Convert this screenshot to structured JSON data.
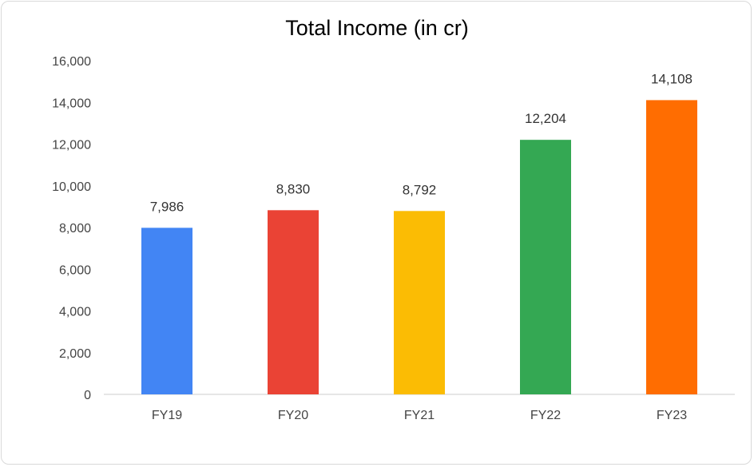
{
  "chart_data": {
    "type": "bar",
    "title": "Total Income (in cr)",
    "xlabel": "",
    "ylabel": "",
    "categories": [
      "FY19",
      "FY20",
      "FY21",
      "FY22",
      "FY23"
    ],
    "values": [
      7986,
      8830,
      8792,
      12204,
      14108
    ],
    "data_labels": [
      "7,986",
      "8,830",
      "8,792",
      "12,204",
      "14,108"
    ],
    "colors": [
      "#4285f4",
      "#ea4335",
      "#fbbc04",
      "#34a853",
      "#ff6d01"
    ],
    "ylim": [
      0,
      16000
    ],
    "yticks": [
      0,
      2000,
      4000,
      6000,
      8000,
      10000,
      12000,
      14000,
      16000
    ],
    "ytick_labels": [
      "0",
      "2,000",
      "4,000",
      "6,000",
      "8,000",
      "10,000",
      "12,000",
      "14,000",
      "16,000"
    ],
    "grid": false,
    "legend": "none"
  }
}
